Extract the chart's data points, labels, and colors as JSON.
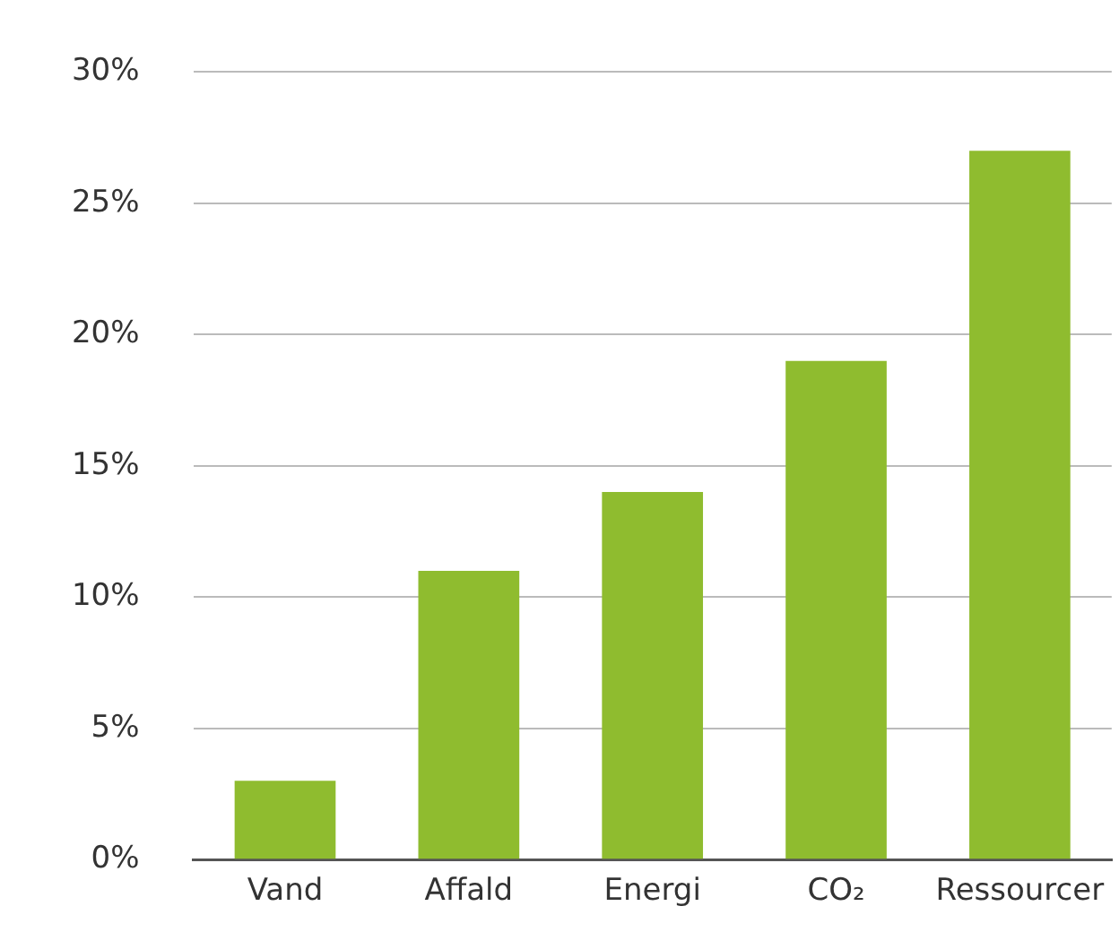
{
  "chart_data": {
    "type": "bar",
    "categories": [
      "Vand",
      "Affald",
      "Energi",
      "CO₂",
      "Ressourcer"
    ],
    "values": [
      3,
      11,
      14,
      19,
      27
    ],
    "color": "#8fbc2f",
    "ylim": [
      0,
      30
    ],
    "yticks": [
      {
        "value": 0,
        "label": "0%"
      },
      {
        "value": 5,
        "label": "5%"
      },
      {
        "value": 10,
        "label": "10%"
      },
      {
        "value": 15,
        "label": "15%"
      },
      {
        "value": 20,
        "label": "20%"
      },
      {
        "value": 25,
        "label": "25%"
      },
      {
        "value": 30,
        "label": "30%"
      }
    ],
    "grid": "y",
    "legend": false
  }
}
